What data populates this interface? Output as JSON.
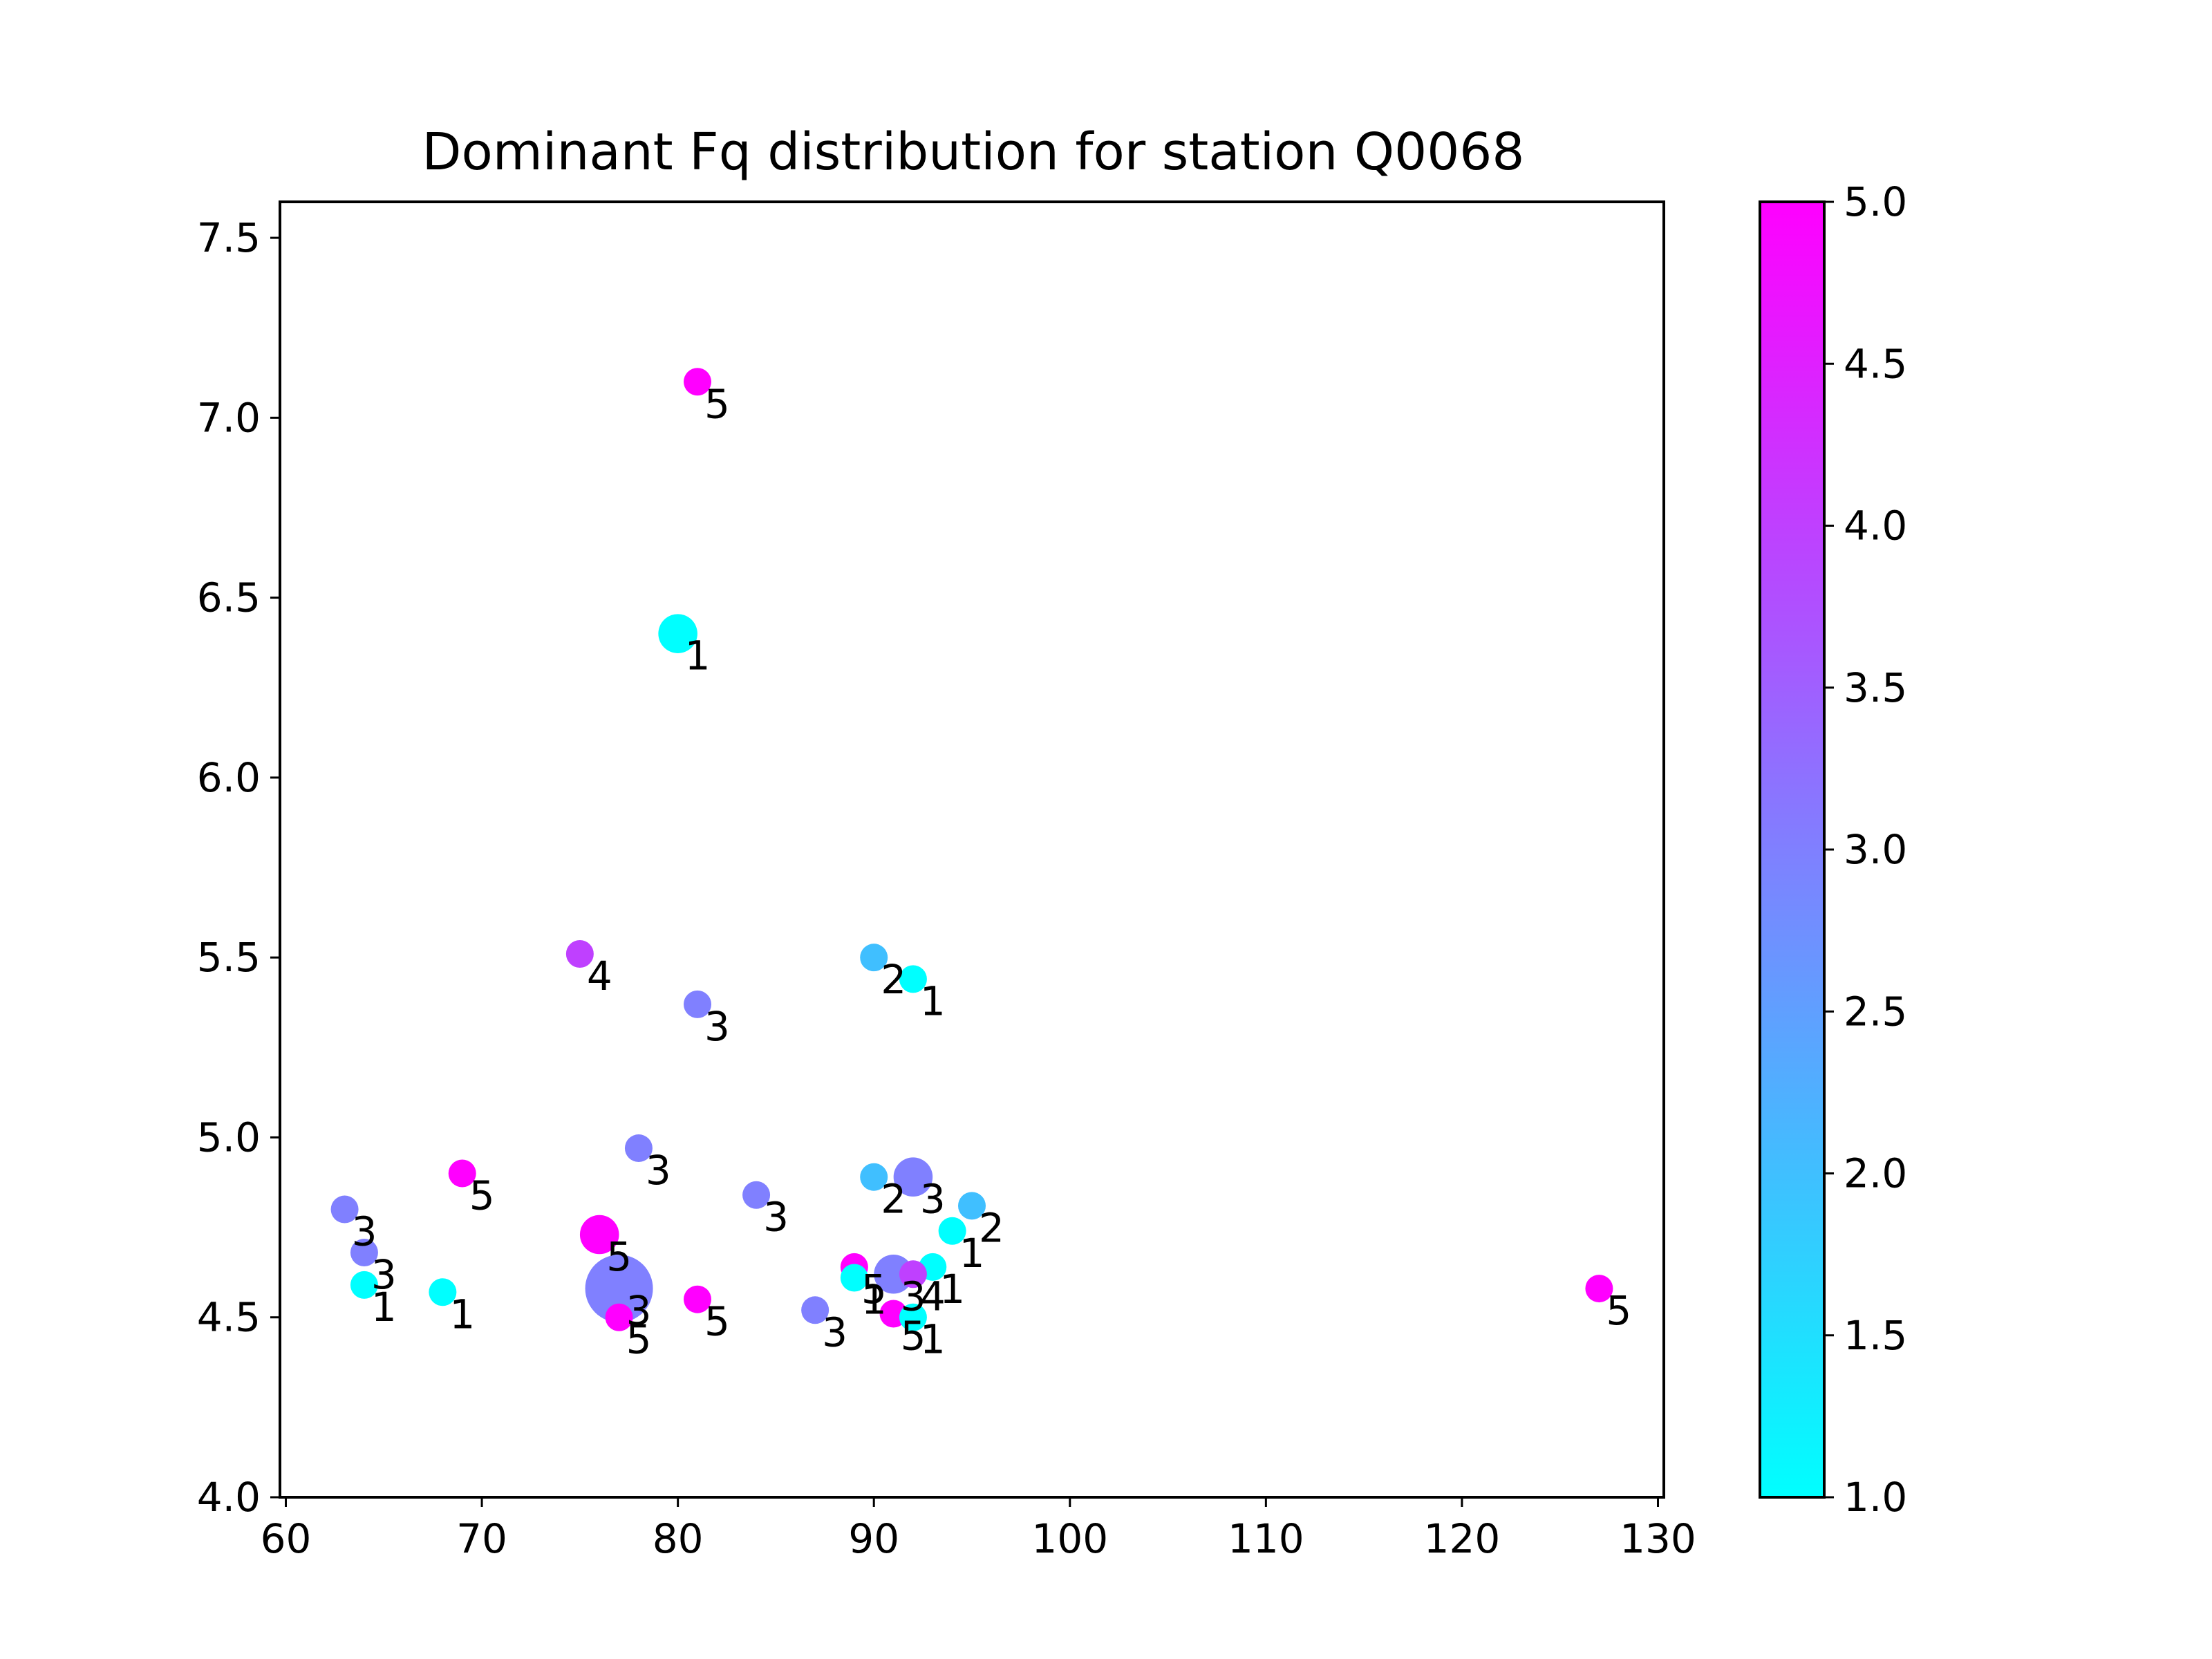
{
  "chart_data": {
    "type": "scatter",
    "title": "Dominant Fq distribution for station Q0068",
    "xlabel": "",
    "ylabel": "",
    "xlim": [
      59.7,
      130.3
    ],
    "ylim": [
      4.0,
      7.6
    ],
    "x_ticks": [
      60,
      70,
      80,
      90,
      100,
      110,
      120,
      130
    ],
    "x_tick_labels": [
      "60",
      "70",
      "80",
      "90",
      "100",
      "110",
      "120",
      "130"
    ],
    "y_ticks": [
      4.0,
      4.5,
      5.0,
      5.5,
      6.0,
      6.5,
      7.0,
      7.5
    ],
    "y_tick_labels": [
      "4.0",
      "4.5",
      "5.0",
      "5.5",
      "6.0",
      "6.5",
      "7.0",
      "7.5"
    ],
    "grid": false,
    "colormap": "cool",
    "color_range": [
      1.0,
      5.0
    ],
    "colorbar_ticks": [
      1.0,
      1.5,
      2.0,
      2.5,
      3.0,
      3.5,
      4.0,
      4.5,
      5.0
    ],
    "colorbar_tick_labels": [
      "1.0",
      "1.5",
      "2.0",
      "2.5",
      "3.0",
      "3.5",
      "4.0",
      "4.5",
      "5.0"
    ],
    "colors": {
      "cool_low": "#00ffff",
      "cool_high": "#ff00ff"
    },
    "points": [
      {
        "x": 81,
        "y": 7.1,
        "c": 5,
        "label": "5",
        "size": 1
      },
      {
        "x": 80,
        "y": 6.4,
        "c": 1,
        "label": "1",
        "size": 2
      },
      {
        "x": 75,
        "y": 5.51,
        "c": 4,
        "label": "4",
        "size": 1
      },
      {
        "x": 81,
        "y": 5.37,
        "c": 3,
        "label": "3",
        "size": 1
      },
      {
        "x": 90,
        "y": 5.5,
        "c": 2,
        "label": "2",
        "size": 1
      },
      {
        "x": 92,
        "y": 5.44,
        "c": 1,
        "label": "1",
        "size": 1
      },
      {
        "x": 78,
        "y": 4.97,
        "c": 3,
        "label": "3",
        "size": 1
      },
      {
        "x": 69,
        "y": 4.9,
        "c": 5,
        "label": "5",
        "size": 1
      },
      {
        "x": 84,
        "y": 4.84,
        "c": 3,
        "label": "3",
        "size": 1
      },
      {
        "x": 90,
        "y": 4.89,
        "c": 2,
        "label": "2",
        "size": 1
      },
      {
        "x": 92,
        "y": 4.89,
        "c": 3,
        "label": "3",
        "size": 2
      },
      {
        "x": 95,
        "y": 4.81,
        "c": 2,
        "label": "2",
        "size": 1
      },
      {
        "x": 63,
        "y": 4.8,
        "c": 3,
        "label": "3",
        "size": 1
      },
      {
        "x": 94,
        "y": 4.74,
        "c": 1,
        "label": "1",
        "size": 1
      },
      {
        "x": 76,
        "y": 4.73,
        "c": 5,
        "label": "5",
        "size": 2
      },
      {
        "x": 64,
        "y": 4.68,
        "c": 3,
        "label": "3",
        "size": 1
      },
      {
        "x": 89,
        "y": 4.64,
        "c": 5,
        "label": "5",
        "size": 1
      },
      {
        "x": 93,
        "y": 4.64,
        "c": 1,
        "label": "1",
        "size": 1
      },
      {
        "x": 89,
        "y": 4.61,
        "c": 1,
        "label": "1",
        "size": 1
      },
      {
        "x": 91,
        "y": 4.62,
        "c": 3,
        "label": "3",
        "size": 2
      },
      {
        "x": 92,
        "y": 4.62,
        "c": 4,
        "label": "4",
        "size": 1
      },
      {
        "x": 64,
        "y": 4.59,
        "c": 1,
        "label": "1",
        "size": 1
      },
      {
        "x": 68,
        "y": 4.57,
        "c": 1,
        "label": "1",
        "size": 1
      },
      {
        "x": 77,
        "y": 4.58,
        "c": 3,
        "label": "3",
        "size": 6
      },
      {
        "x": 127,
        "y": 4.58,
        "c": 5,
        "label": "5",
        "size": 1
      },
      {
        "x": 81,
        "y": 4.55,
        "c": 5,
        "label": "5",
        "size": 1
      },
      {
        "x": 87,
        "y": 4.52,
        "c": 3,
        "label": "3",
        "size": 1
      },
      {
        "x": 91,
        "y": 4.51,
        "c": 5,
        "label": "5",
        "size": 1
      },
      {
        "x": 92,
        "y": 4.5,
        "c": 1,
        "label": "1",
        "size": 1
      },
      {
        "x": 77,
        "y": 4.5,
        "c": 5,
        "label": "5",
        "size": 1
      }
    ]
  }
}
